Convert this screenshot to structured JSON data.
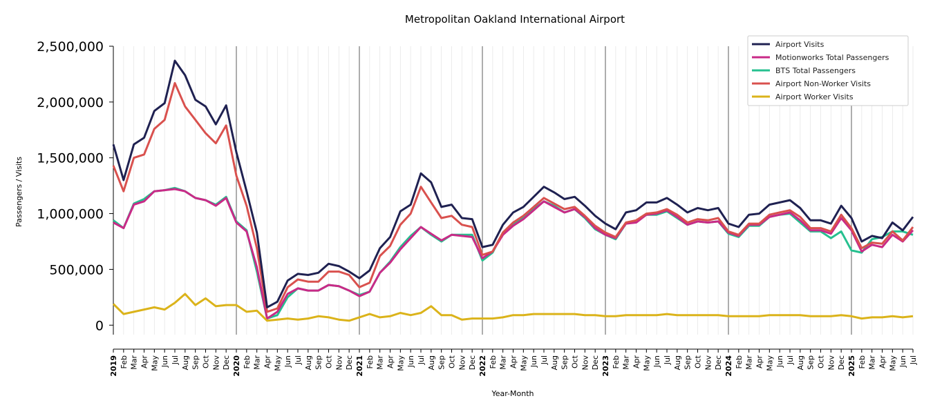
{
  "chart_data": {
    "type": "line",
    "title": "Metropolitan Oakland International Airport",
    "xlabel": "Year-Month",
    "ylabel": "Passengers / Visits",
    "ylim": [
      -85000,
      2500000
    ],
    "yticks": [
      0,
      500000,
      1000000,
      1500000,
      2000000,
      2500000
    ],
    "ytick_labels": [
      "0",
      "500,000",
      "1,000,000",
      "1,500,000",
      "2,000,000",
      "2,500,000"
    ],
    "legend_position": "top-right",
    "grid": "vertical monthly lines, darker at year boundaries",
    "years": [
      "2019",
      "2020",
      "2021",
      "2022",
      "2023",
      "2024",
      "2025"
    ],
    "months": [
      "Feb",
      "Mar",
      "Apr",
      "May",
      "Jun",
      "Jul",
      "Aug",
      "Sep",
      "Oct",
      "Nov",
      "Dec"
    ],
    "x": [
      "2019-01",
      "2019-02",
      "2019-03",
      "2019-04",
      "2019-05",
      "2019-06",
      "2019-07",
      "2019-08",
      "2019-09",
      "2019-10",
      "2019-11",
      "2019-12",
      "2020-01",
      "2020-02",
      "2020-03",
      "2020-04",
      "2020-05",
      "2020-06",
      "2020-07",
      "2020-08",
      "2020-09",
      "2020-10",
      "2020-11",
      "2020-12",
      "2021-01",
      "2021-02",
      "2021-03",
      "2021-04",
      "2021-05",
      "2021-06",
      "2021-07",
      "2021-08",
      "2021-09",
      "2021-10",
      "2021-11",
      "2021-12",
      "2022-01",
      "2022-02",
      "2022-03",
      "2022-04",
      "2022-05",
      "2022-06",
      "2022-07",
      "2022-08",
      "2022-09",
      "2022-10",
      "2022-11",
      "2022-12",
      "2023-01",
      "2023-02",
      "2023-03",
      "2023-04",
      "2023-05",
      "2023-06",
      "2023-07",
      "2023-08",
      "2023-09",
      "2023-10",
      "2023-11",
      "2023-12",
      "2024-01",
      "2024-02",
      "2024-03",
      "2024-04",
      "2024-05",
      "2024-06",
      "2024-07",
      "2024-08",
      "2024-09",
      "2024-10",
      "2024-11",
      "2024-12",
      "2025-01",
      "2025-02",
      "2025-03",
      "2025-04",
      "2025-05",
      "2025-06",
      "2025-07"
    ],
    "series": [
      {
        "name": "Airport Visits",
        "color": "#1f2151",
        "values": [
          1620000,
          1300000,
          1620000,
          1680000,
          1920000,
          1990000,
          2370000,
          2240000,
          2020000,
          1960000,
          1800000,
          1970000,
          1550000,
          1200000,
          830000,
          160000,
          210000,
          400000,
          460000,
          450000,
          470000,
          550000,
          530000,
          480000,
          420000,
          490000,
          690000,
          790000,
          1020000,
          1080000,
          1360000,
          1280000,
          1060000,
          1080000,
          960000,
          950000,
          700000,
          720000,
          900000,
          1010000,
          1060000,
          1150000,
          1240000,
          1190000,
          1130000,
          1150000,
          1070000,
          980000,
          910000,
          860000,
          1010000,
          1030000,
          1100000,
          1100000,
          1140000,
          1080000,
          1010000,
          1050000,
          1030000,
          1050000,
          910000,
          880000,
          990000,
          1000000,
          1080000,
          1100000,
          1120000,
          1050000,
          940000,
          940000,
          910000,
          1070000,
          960000,
          750000,
          800000,
          780000,
          920000,
          850000,
          970000
        ]
      },
      {
        "name": "Motionworks Total Passengers",
        "color": "#c92a87",
        "values": [
          920000,
          870000,
          1080000,
          1110000,
          1200000,
          1210000,
          1220000,
          1200000,
          1140000,
          1120000,
          1070000,
          1140000,
          920000,
          840000,
          520000,
          60000,
          120000,
          280000,
          330000,
          310000,
          310000,
          360000,
          350000,
          310000,
          260000,
          300000,
          470000,
          560000,
          680000,
          780000,
          880000,
          820000,
          760000,
          810000,
          800000,
          790000,
          600000,
          660000,
          810000,
          890000,
          950000,
          1030000,
          1110000,
          1060000,
          1010000,
          1040000,
          970000,
          870000,
          810000,
          780000,
          910000,
          920000,
          990000,
          1000000,
          1030000,
          970000,
          900000,
          930000,
          920000,
          930000,
          830000,
          800000,
          900000,
          900000,
          970000,
          990000,
          1010000,
          940000,
          850000,
          850000,
          820000,
          960000,
          850000,
          660000,
          720000,
          700000,
          810000,
          750000,
          850000
        ]
      },
      {
        "name": "BTS Total Passengers",
        "color": "#26c08f",
        "values": [
          940000,
          870000,
          1090000,
          1130000,
          1200000,
          1210000,
          1230000,
          1200000,
          1140000,
          1120000,
          1080000,
          1150000,
          930000,
          850000,
          480000,
          60000,
          90000,
          250000,
          330000,
          310000,
          310000,
          360000,
          350000,
          310000,
          270000,
          300000,
          470000,
          570000,
          700000,
          800000,
          880000,
          810000,
          750000,
          810000,
          810000,
          810000,
          580000,
          650000,
          830000,
          910000,
          970000,
          1040000,
          1110000,
          1070000,
          1010000,
          1040000,
          960000,
          860000,
          810000,
          770000,
          910000,
          930000,
          990000,
          990000,
          1020000,
          960000,
          900000,
          930000,
          920000,
          930000,
          820000,
          790000,
          890000,
          890000,
          970000,
          990000,
          1000000,
          920000,
          840000,
          840000,
          780000,
          840000,
          670000,
          650000,
          770000,
          790000,
          840000,
          840000,
          810000
        ]
      },
      {
        "name": "Airport Non-Worker Visits",
        "color": "#d9514e",
        "values": [
          1430000,
          1200000,
          1500000,
          1530000,
          1760000,
          1840000,
          2170000,
          1960000,
          1840000,
          1720000,
          1630000,
          1790000,
          1340000,
          1070000,
          690000,
          120000,
          150000,
          340000,
          410000,
          390000,
          390000,
          480000,
          480000,
          450000,
          340000,
          380000,
          620000,
          710000,
          900000,
          1000000,
          1240000,
          1100000,
          960000,
          980000,
          900000,
          880000,
          630000,
          660000,
          830000,
          920000,
          980000,
          1060000,
          1140000,
          1090000,
          1040000,
          1060000,
          980000,
          890000,
          830000,
          790000,
          920000,
          940000,
          1000000,
          1010000,
          1040000,
          990000,
          920000,
          950000,
          940000,
          960000,
          840000,
          810000,
          910000,
          910000,
          990000,
          1010000,
          1030000,
          970000,
          870000,
          870000,
          840000,
          990000,
          870000,
          690000,
          740000,
          730000,
          840000,
          760000,
          880000
        ]
      },
      {
        "name": "Airport Worker Visits",
        "color": "#dbb31a",
        "values": [
          190000,
          100000,
          120000,
          140000,
          160000,
          140000,
          200000,
          280000,
          180000,
          240000,
          170000,
          180000,
          180000,
          120000,
          130000,
          40000,
          50000,
          60000,
          50000,
          60000,
          80000,
          70000,
          50000,
          40000,
          70000,
          100000,
          70000,
          80000,
          110000,
          90000,
          110000,
          170000,
          90000,
          90000,
          50000,
          60000,
          60000,
          60000,
          70000,
          90000,
          90000,
          100000,
          100000,
          100000,
          100000,
          100000,
          90000,
          90000,
          80000,
          80000,
          90000,
          90000,
          90000,
          90000,
          100000,
          90000,
          90000,
          90000,
          90000,
          90000,
          80000,
          80000,
          80000,
          80000,
          90000,
          90000,
          90000,
          90000,
          80000,
          80000,
          80000,
          90000,
          80000,
          60000,
          70000,
          70000,
          80000,
          70000,
          80000
        ]
      }
    ]
  }
}
